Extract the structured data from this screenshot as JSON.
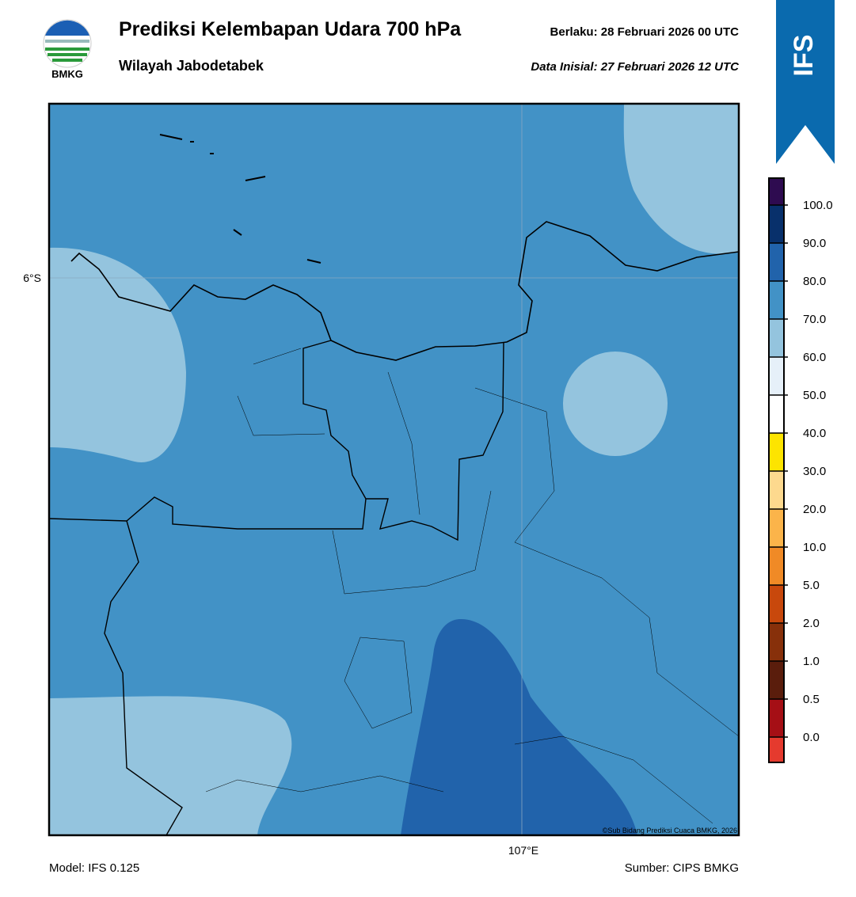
{
  "header": {
    "title": "Prediksi Kelembapan Udara 700 hPa",
    "subtitle": "Wilayah Jabodetabek",
    "valid": "Berlaku:  28 Februari 2026 00 UTC",
    "init": "Data Inisial:  27 Februari 2026 12 UTC",
    "logo_text": "BMKG",
    "badge": "IFS"
  },
  "map": {
    "lat_label": "6°S",
    "lon_label": "107°E",
    "credit": "©Sub Bidang Prediksi Cuaca BMKG, 2026"
  },
  "colorbar": {
    "labels": [
      "0.0",
      "0.5",
      "1.0",
      "2.0",
      "5.0",
      "10.0",
      "20.0",
      "30.0",
      "40.0",
      "50.0",
      "60.0",
      "70.0",
      "80.0",
      "90.0",
      "100.0"
    ],
    "colors": [
      "#e53a2e",
      "#a50f15",
      "#5a1d0c",
      "#87300a",
      "#c8480c",
      "#f08a26",
      "#fbb44a",
      "#fdd98e",
      "#fde400",
      "#ffffff",
      "#e6f0f9",
      "#94c4de",
      "#4292c6",
      "#2163ab",
      "#08306b",
      "#2e0b50"
    ]
  },
  "footer": {
    "model": "Model: IFS 0.125",
    "source": "Sumber: CIPS BMKG"
  }
}
